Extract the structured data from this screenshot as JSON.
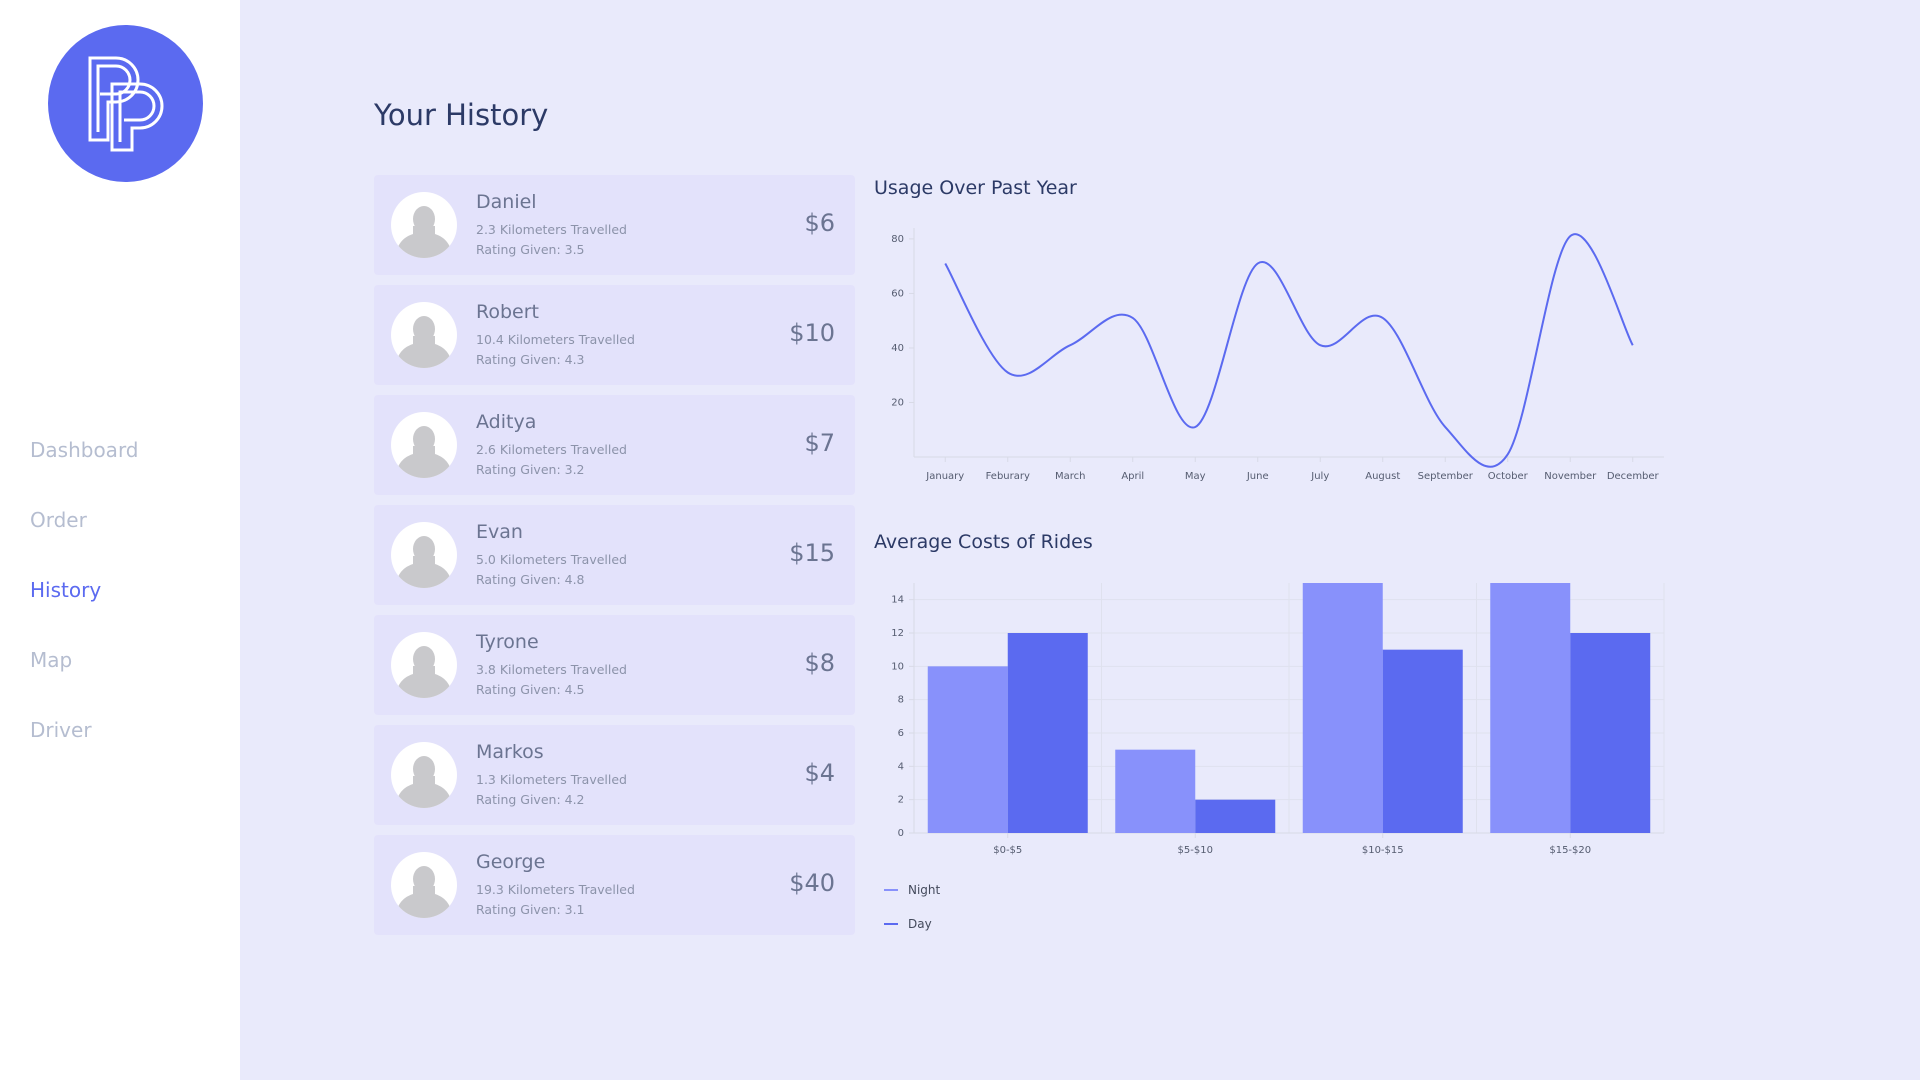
{
  "sidebar": {
    "logo_icon": "pp-logo-icon",
    "nav": [
      "Dashboard",
      "Order",
      "History",
      "Map",
      "Driver"
    ],
    "active": "History"
  },
  "page": {
    "title": "Your History"
  },
  "rides": [
    {
      "name": "Daniel",
      "km": "2.3 Kilometers Travelled",
      "rating": "Rating Given: 3.5",
      "price": "$6"
    },
    {
      "name": "Robert",
      "km": "10.4 Kilometers Travelled",
      "rating": "Rating Given: 4.3",
      "price": "$10"
    },
    {
      "name": "Aditya",
      "km": "2.6 Kilometers Travelled",
      "rating": "Rating Given: 3.2",
      "price": "$7"
    },
    {
      "name": "Evan",
      "km": "5.0 Kilometers Travelled",
      "rating": "Rating Given: 4.8",
      "price": "$15"
    },
    {
      "name": "Tyrone",
      "km": "3.8 Kilometers Travelled",
      "rating": "Rating Given: 4.5",
      "price": "$8"
    },
    {
      "name": "Markos",
      "km": "1.3 Kilometers Travelled",
      "rating": "Rating Given: 4.2",
      "price": "$4"
    },
    {
      "name": "George",
      "km": "19.3 Kilometers Travelled",
      "rating": "Rating Given: 3.1",
      "price": "$40"
    }
  ],
  "colors": {
    "accent": "#5b6af0",
    "night": "#8891fb",
    "day": "#5b6af0",
    "card": "#e3e2fb",
    "background": "#e9eafb"
  },
  "chart_data": [
    {
      "type": "line",
      "title": "Usage Over Past Year",
      "categories": [
        "January",
        "Feburary",
        "March",
        "April",
        "May",
        "June",
        "July",
        "August",
        "September",
        "October",
        "November",
        "December"
      ],
      "values": [
        71,
        31,
        41,
        51,
        11,
        71,
        41,
        51,
        11,
        1,
        81,
        41
      ],
      "yticks": [
        20,
        40,
        60,
        80
      ],
      "ylim": [
        0,
        84
      ],
      "grid": false
    },
    {
      "type": "bar",
      "title": "Average Costs of Rides",
      "categories": [
        "$0-$5",
        "$5-$10",
        "$10-$15",
        "$15-$20"
      ],
      "series": [
        {
          "name": "Night",
          "values": [
            10,
            5,
            15,
            15
          ]
        },
        {
          "name": "Day",
          "values": [
            12,
            2,
            11,
            12
          ]
        }
      ],
      "yticks": [
        0,
        2,
        4,
        6,
        8,
        10,
        12,
        14
      ],
      "ylim": [
        0,
        15
      ],
      "grid": true,
      "legend": "bottom-left"
    }
  ]
}
